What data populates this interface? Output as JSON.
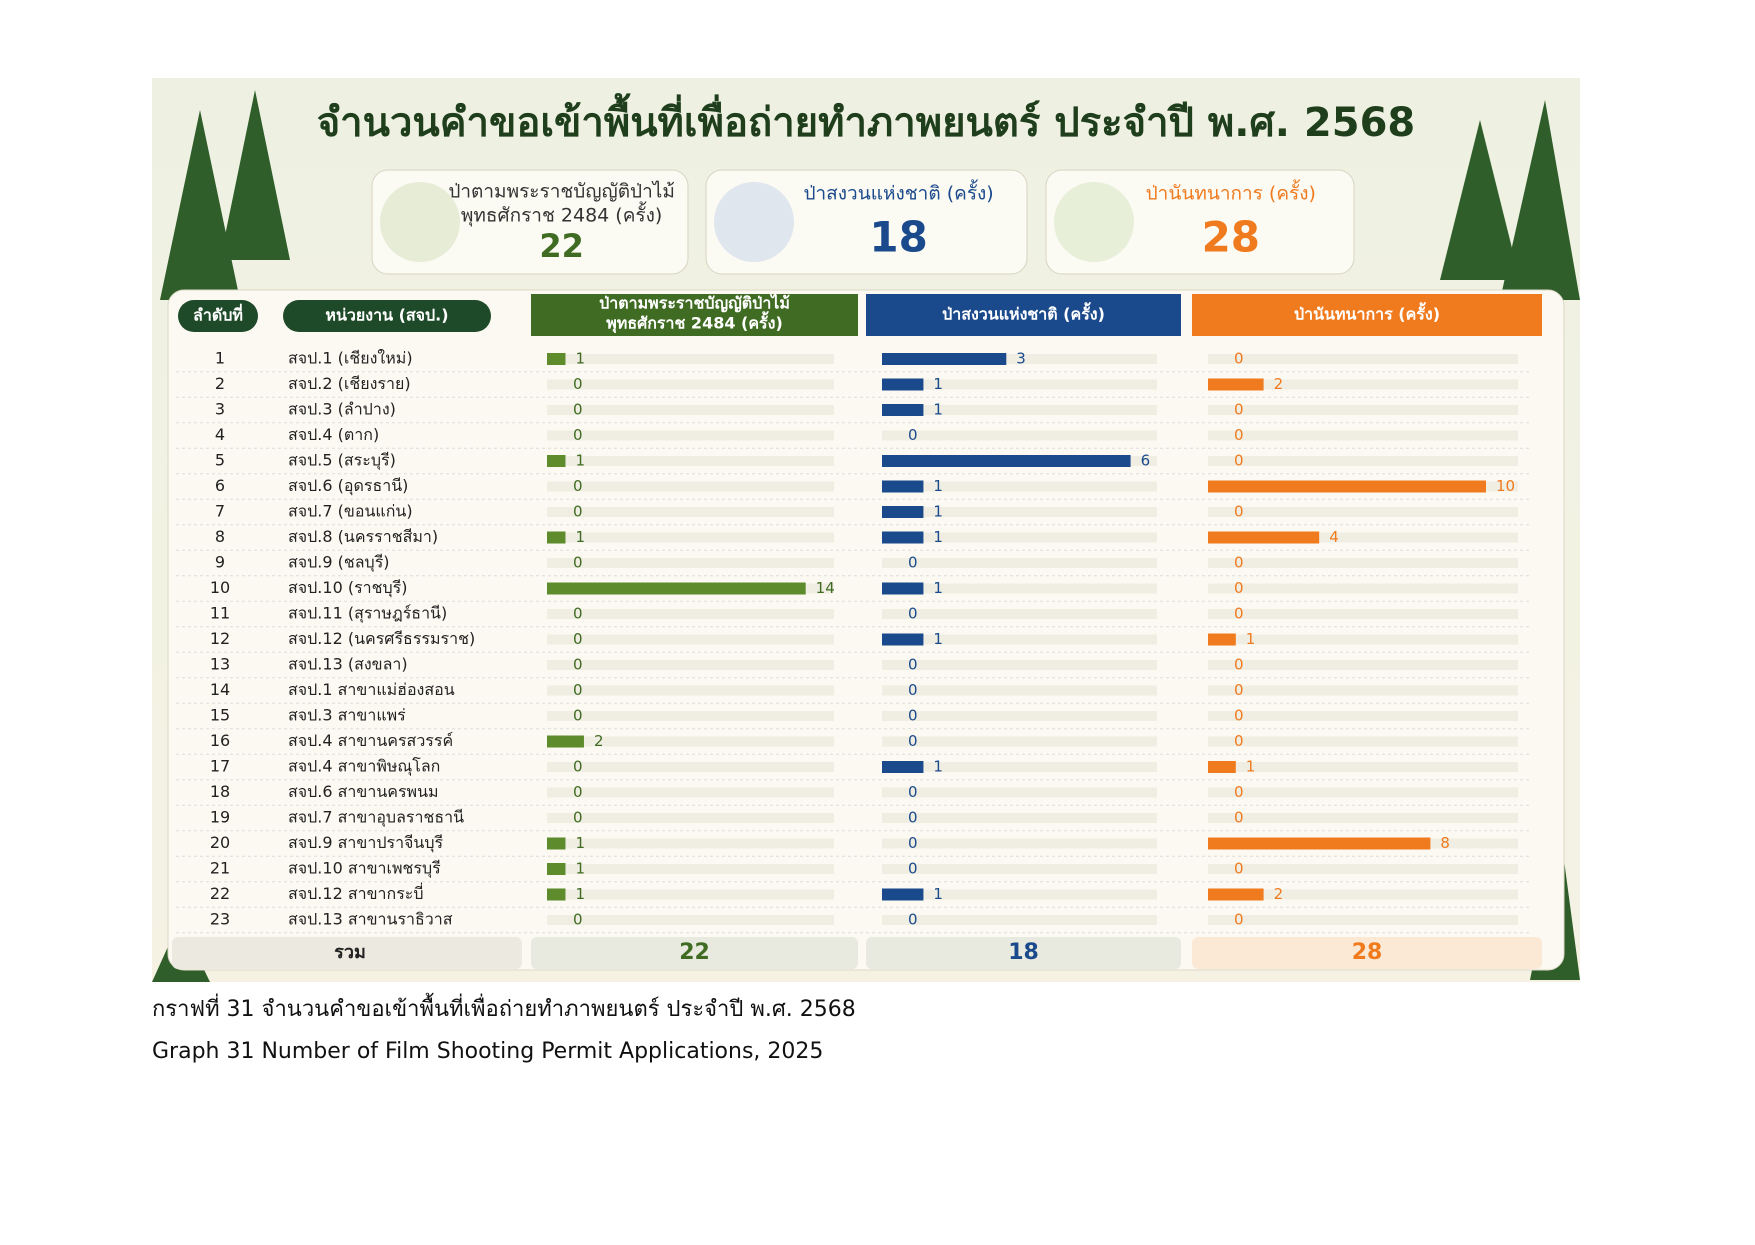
{
  "title": "จำนวนคำขอเข้าพื้นที่เพื่อถ่ายทำภาพยนตร์ ประจำปี พ.ศ. 2568",
  "table": {
    "headers": [
      "ลำดับที่",
      "หน่วยงาน (สจป.)"
    ],
    "total_label": "รวม",
    "rows": [
      {
        "no": 1,
        "unit": "สจป.1 (เชียงใหม่)"
      },
      {
        "no": 2,
        "unit": "สจป.2 (เชียงราย)"
      },
      {
        "no": 3,
        "unit": "สจป.3 (ลำปาง)"
      },
      {
        "no": 4,
        "unit": "สจป.4 (ตาก)"
      },
      {
        "no": 5,
        "unit": "สจป.5 (สระบุรี)"
      },
      {
        "no": 6,
        "unit": "สจป.6 (อุดรธานี)"
      },
      {
        "no": 7,
        "unit": "สจป.7 (ขอนแก่น)"
      },
      {
        "no": 8,
        "unit": "สจป.8 (นครราชสีมา)"
      },
      {
        "no": 9,
        "unit": "สจป.9 (ชลบุรี)"
      },
      {
        "no": 10,
        "unit": "สจป.10 (ราชบุรี)"
      },
      {
        "no": 11,
        "unit": "สจป.11 (สุราษฎร์ธานี)"
      },
      {
        "no": 12,
        "unit": "สจป.12 (นครศรีธรรมราช)"
      },
      {
        "no": 13,
        "unit": "สจป.13 (สงขลา)"
      },
      {
        "no": 14,
        "unit": "สจป.1 สาขาแม่ฮ่องสอน"
      },
      {
        "no": 15,
        "unit": "สจป.3 สาขาแพร่"
      },
      {
        "no": 16,
        "unit": "สจป.4 สาขานครสวรรค์"
      },
      {
        "no": 17,
        "unit": "สจป.4 สาขาพิษณุโลก"
      },
      {
        "no": 18,
        "unit": "สจป.6 สาขานครพนม"
      },
      {
        "no": 19,
        "unit": "สจป.7 สาขาอุบลราชธานี"
      },
      {
        "no": 20,
        "unit": "สจป.9 สาขาปราจีนบุรี"
      },
      {
        "no": 21,
        "unit": "สจป.10 สาขาเพชรบุรี"
      },
      {
        "no": 22,
        "unit": "สจป.12 สาขากระบี่"
      },
      {
        "no": 23,
        "unit": "สจป.13 สาขานราธิวาส"
      }
    ]
  },
  "columns": [
    {
      "header_lines": [
        "ป่าตามพระราชบัญญัติป่าไม้",
        "พุทธศักราช 2484 (ครั้ง)"
      ],
      "color": "#5e8c2c",
      "header_color": "#3f6b22",
      "values": [
        1,
        0,
        0,
        0,
        1,
        0,
        0,
        1,
        0,
        14,
        0,
        0,
        0,
        0,
        0,
        2,
        0,
        0,
        0,
        1,
        1,
        1,
        0
      ],
      "total": 22
    },
    {
      "header_lines": [
        "ป่าสงวนแห่งชาติ (ครั้ง)"
      ],
      "color": "#1b4a8c",
      "header_color": "#1b4a8c",
      "values": [
        3,
        1,
        1,
        0,
        6,
        1,
        1,
        1,
        0,
        1,
        0,
        1,
        0,
        0,
        0,
        0,
        1,
        0,
        0,
        0,
        0,
        1,
        0
      ],
      "total": 18
    },
    {
      "header_lines": [
        "ป่านันทนาการ (ครั้ง)"
      ],
      "color": "#f07a1e",
      "header_color": "#f07a1e",
      "values": [
        0,
        2,
        0,
        0,
        0,
        10,
        0,
        4,
        0,
        0,
        0,
        1,
        0,
        0,
        0,
        0,
        1,
        0,
        0,
        8,
        0,
        2,
        0
      ],
      "total": 28
    }
  ],
  "caption": [
    "กราฟที่ 31 จำนวนคำขอเข้าพื้นที่เพื่อถ่ายทำภาพยนตร์ ประจำปี พ.ศ. 2568",
    "Graph 31 Number of Film Shooting Permit Applications, 2025"
  ]
}
